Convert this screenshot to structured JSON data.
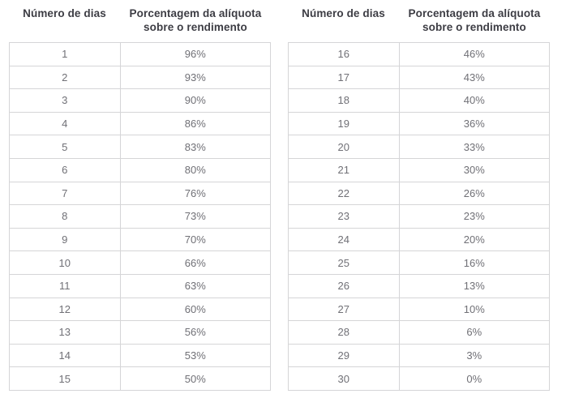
{
  "page": {
    "background": "#ffffff",
    "border_color": "#d5d5d7",
    "header_text_color": "#3d3d44",
    "cell_text_color": "#707076"
  },
  "columns": {
    "days_label": "Número de dias",
    "rate_label": "Porcentagem da alíquota sobre o rendimento"
  },
  "tables": [
    {
      "name": "days-1-15",
      "rows": [
        {
          "day": "1",
          "rate": "96%"
        },
        {
          "day": "2",
          "rate": "93%"
        },
        {
          "day": "3",
          "rate": "90%"
        },
        {
          "day": "4",
          "rate": "86%"
        },
        {
          "day": "5",
          "rate": "83%"
        },
        {
          "day": "6",
          "rate": "80%"
        },
        {
          "day": "7",
          "rate": "76%"
        },
        {
          "day": "8",
          "rate": "73%"
        },
        {
          "day": "9",
          "rate": "70%"
        },
        {
          "day": "10",
          "rate": "66%"
        },
        {
          "day": "11",
          "rate": "63%"
        },
        {
          "day": "12",
          "rate": "60%"
        },
        {
          "day": "13",
          "rate": "56%"
        },
        {
          "day": "14",
          "rate": "53%"
        },
        {
          "day": "15",
          "rate": "50%"
        }
      ]
    },
    {
      "name": "days-16-30",
      "rows": [
        {
          "day": "16",
          "rate": "46%"
        },
        {
          "day": "17",
          "rate": "43%"
        },
        {
          "day": "18",
          "rate": "40%"
        },
        {
          "day": "19",
          "rate": "36%"
        },
        {
          "day": "20",
          "rate": "33%"
        },
        {
          "day": "21",
          "rate": "30%"
        },
        {
          "day": "22",
          "rate": "26%"
        },
        {
          "day": "23",
          "rate": "23%"
        },
        {
          "day": "24",
          "rate": "20%"
        },
        {
          "day": "25",
          "rate": "16%"
        },
        {
          "day": "26",
          "rate": "13%"
        },
        {
          "day": "27",
          "rate": "10%"
        },
        {
          "day": "28",
          "rate": "6%"
        },
        {
          "day": "29",
          "rate": "3%"
        },
        {
          "day": "30",
          "rate": "0%"
        }
      ]
    }
  ]
}
